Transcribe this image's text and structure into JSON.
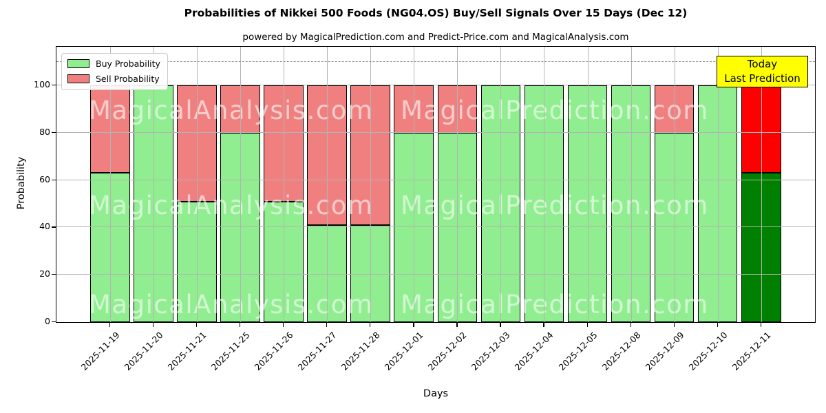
{
  "title": "Probabilities of Nikkei 500 Foods (NG04.OS) Buy/Sell Signals Over 15 Days (Dec 12)",
  "subtitle": "powered by MagicalPrediction.com and Predict-Price.com and MagicalAnalysis.com",
  "legend": {
    "items": [
      {
        "label": "Buy Probability",
        "color": "#90ee90"
      },
      {
        "label": "Sell Probability",
        "color": "#f08080"
      }
    ]
  },
  "annotation_box": {
    "line1": "Today",
    "line2": "Last Prediction",
    "bg": "#ffff00",
    "border": "#000000"
  },
  "watermarks": {
    "left": "MagicalAnalysis.com",
    "right": "MagicalPrediction.com",
    "rows": 3
  },
  "chart_data": {
    "type": "bar",
    "stacked": true,
    "title": "Probabilities of Nikkei 500 Foods (NG04.OS) Buy/Sell Signals Over 15 Days (Dec 12)",
    "xlabel": "Days",
    "ylabel": "Probability",
    "ylim": [
      0,
      116
    ],
    "yticks": [
      0,
      20,
      40,
      60,
      80,
      100
    ],
    "grid": true,
    "dashed_line_y": 110,
    "legend_position": "upper left",
    "categories": [
      "2025-11-19",
      "2025-11-20",
      "2025-11-21",
      "2025-11-25",
      "2025-11-26",
      "2025-11-27",
      "2025-11-28",
      "2025-12-01",
      "2025-12-02",
      "2025-12-03",
      "2025-12-04",
      "2025-12-05",
      "2025-12-08",
      "2025-12-09",
      "2025-12-10",
      "2025-12-11"
    ],
    "series": [
      {
        "name": "Buy Probability",
        "color": "#90ee90",
        "today_color": "#008000",
        "values": [
          63,
          100,
          51,
          80,
          51,
          41,
          41,
          80,
          80,
          100,
          100,
          100,
          100,
          80,
          100,
          63
        ]
      },
      {
        "name": "Sell Probability",
        "color": "#f08080",
        "today_color": "#ff0000",
        "values": [
          37,
          0,
          49,
          20,
          49,
          59,
          59,
          20,
          20,
          0,
          0,
          0,
          0,
          20,
          0,
          37
        ]
      }
    ],
    "today_index": 15
  }
}
